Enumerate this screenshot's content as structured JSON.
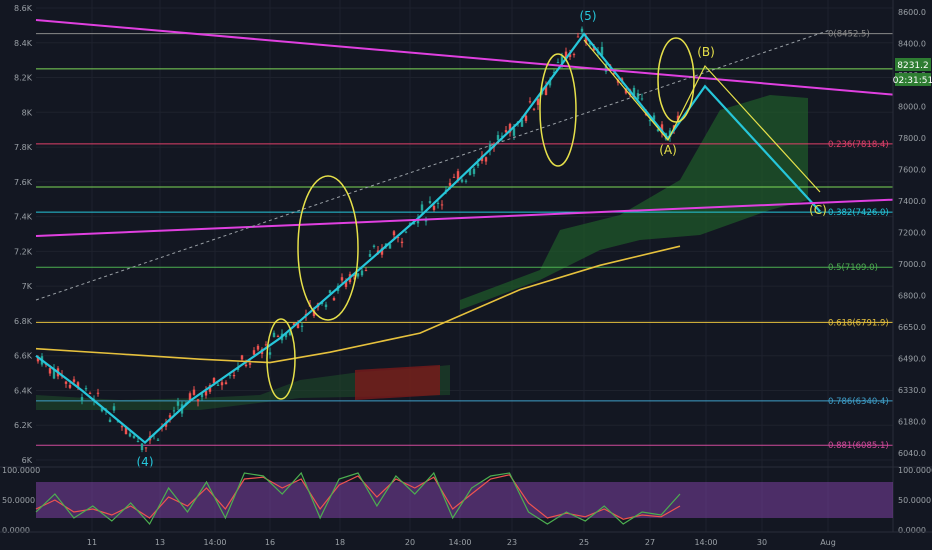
{
  "chart_data": {
    "type": "line",
    "title": "",
    "xlabel": "",
    "ylabel": "",
    "x_ticks": [
      "11",
      "13",
      "14:00",
      "16",
      "18",
      "20",
      "14:00",
      "23",
      "25",
      "27",
      "14:00",
      "30",
      "Aug"
    ],
    "left_axis_ticks": [
      "8.6K",
      "8.4K",
      "8.2K",
      "8K",
      "7.8K",
      "7.6K",
      "7.4K",
      "7.2K",
      "7K",
      "6.8K",
      "6.6K",
      "6.4K",
      "6.2K",
      "6K"
    ],
    "right_axis_ticks": [
      "8600.0",
      "8400.0",
      "8200.0",
      "8000.0",
      "7800.0",
      "7600.0",
      "7400.0",
      "7200.0",
      "7000.0",
      "6800.0",
      "6650.0",
      "6490.0",
      "6330.0",
      "6180.0",
      "6040.0"
    ],
    "last_price_tag": "8231.2",
    "countdown_tag": "02:31:51",
    "fib_levels": [
      {
        "label": "0(8452.5)",
        "value": 8452.5,
        "color": "#8a8a8a"
      },
      {
        "label": "0.236(7818.4)",
        "value": 7818.4,
        "color": "#e0406a"
      },
      {
        "label": "0.382(7426.0)",
        "value": 7426.0,
        "color": "#26c6da"
      },
      {
        "label": "0.5(7109.0)",
        "value": 7109.0,
        "color": "#4caf50"
      },
      {
        "label": "0.618(6791.9)",
        "value": 6791.9,
        "color": "#e6c13d"
      },
      {
        "label": "0.786(6340.4)",
        "value": 6340.4,
        "color": "#3f9fc9"
      },
      {
        "label": "0.881(6085.1)",
        "value": 6085.1,
        "color": "#d04a9a"
      }
    ],
    "wave_labels": [
      "(4)",
      "(5)",
      "(A)",
      "(B)",
      "(C)"
    ],
    "series": [
      {
        "name": "",
        "color": "#26c6da",
        "x": [
          36,
          82,
          145,
          190,
          280,
          420,
          520,
          584,
          668,
          705,
          820
        ],
        "values": [
          6600,
          6400,
          6100,
          6340,
          6700,
          7400,
          7950,
          8450,
          7850,
          8150,
          7430
        ]
      },
      {
        "name": "",
        "color": "#e6c13d",
        "x": [
          36,
          120,
          200,
          270,
          330,
          420,
          520,
          600,
          680
        ],
        "values": [
          6640,
          6610,
          6580,
          6560,
          6620,
          6730,
          6980,
          7120,
          7230
        ]
      }
    ],
    "oscillator": {
      "ticks": [
        "100.0000",
        "50.0000",
        "0.0000"
      ],
      "band_upper": 80,
      "band_lower": 20,
      "k_values": [
        30,
        60,
        20,
        40,
        15,
        45,
        10,
        70,
        30,
        80,
        20,
        95,
        90,
        60,
        95,
        20,
        85,
        95,
        40,
        90,
        60,
        95,
        20,
        70,
        90,
        95,
        30,
        10,
        30,
        15,
        40,
        10,
        30,
        25,
        60
      ],
      "d_values": [
        35,
        50,
        30,
        35,
        25,
        40,
        20,
        55,
        40,
        70,
        35,
        85,
        88,
        70,
        85,
        35,
        75,
        90,
        55,
        85,
        70,
        88,
        35,
        60,
        85,
        92,
        45,
        20,
        28,
        22,
        35,
        18,
        25,
        22,
        40
      ]
    }
  }
}
